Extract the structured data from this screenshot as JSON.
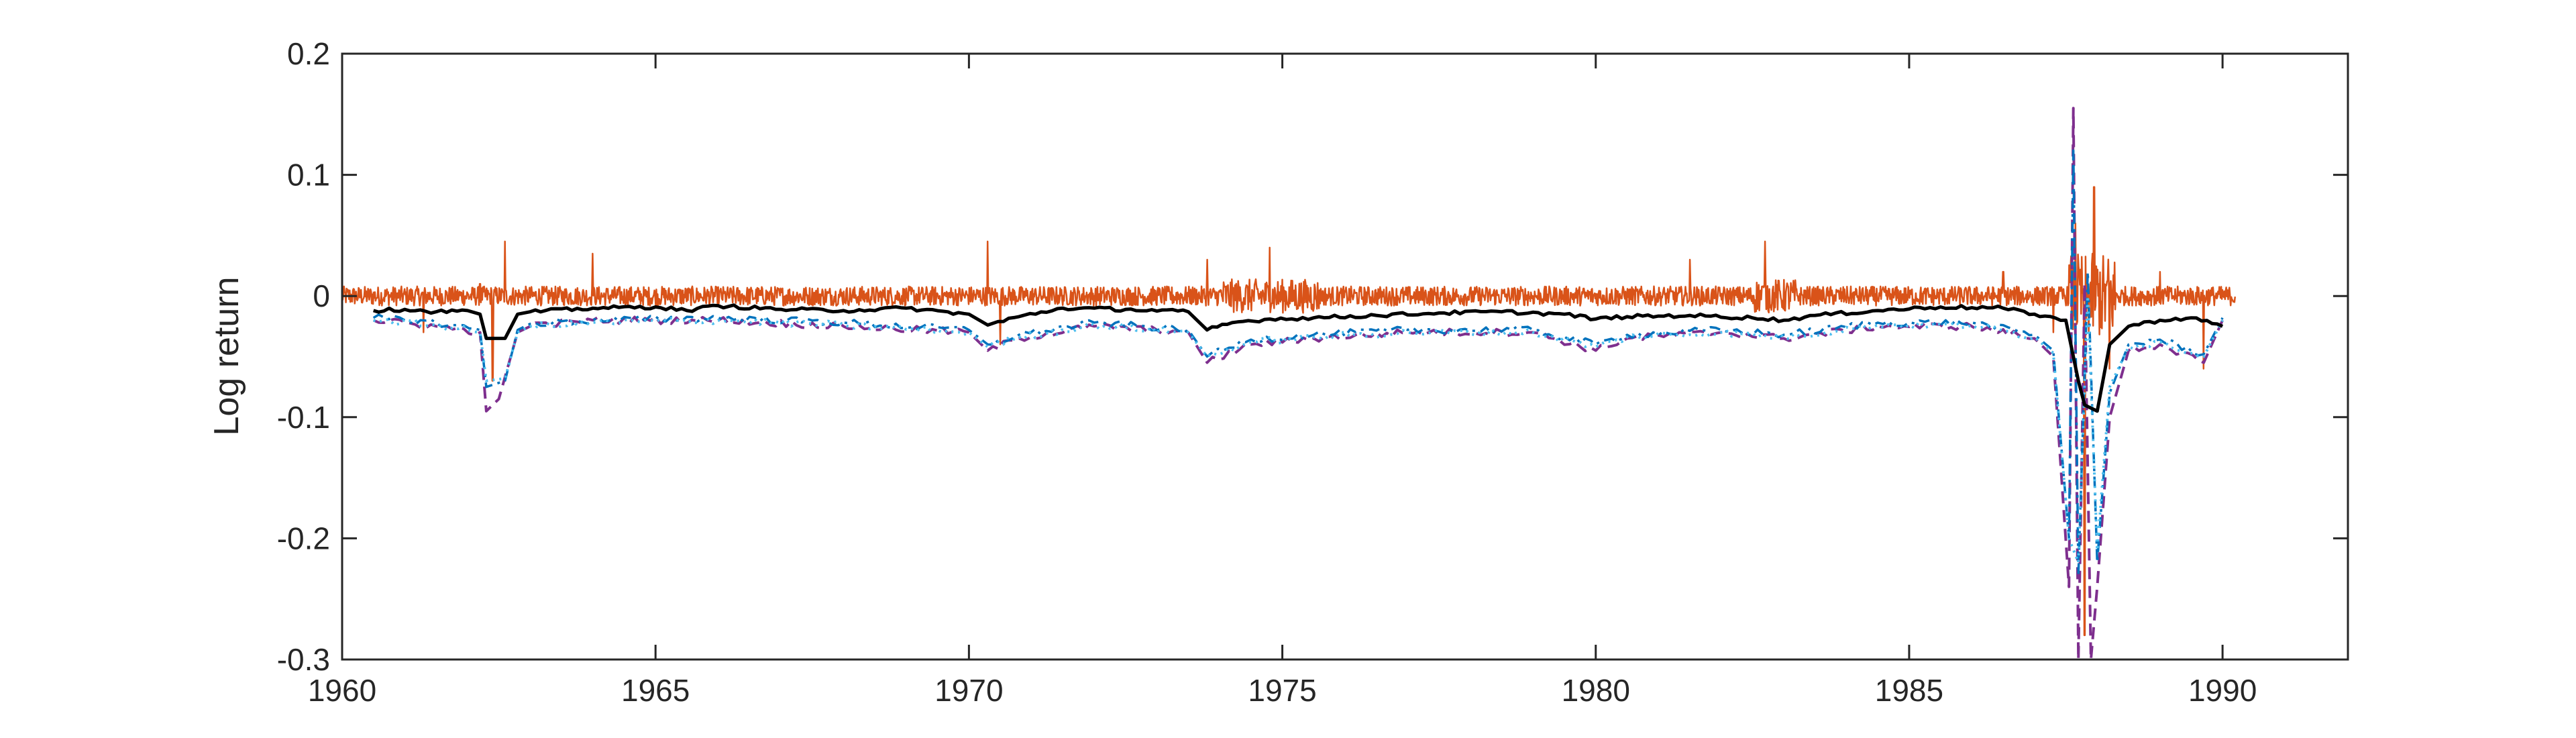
{
  "chart_data": {
    "type": "line",
    "title": "",
    "xlabel": "",
    "ylabel": "Log return",
    "xlim": [
      1960,
      1992
    ],
    "ylim": [
      -0.3,
      0.2
    ],
    "x_ticks": [
      1960,
      1965,
      1970,
      1975,
      1980,
      1985,
      1990
    ],
    "x_tick_labels": [
      "1960",
      "1965",
      "1970",
      "1975",
      "1980",
      "1985",
      "1990"
    ],
    "y_ticks": [
      0.2,
      0.1,
      0,
      -0.1,
      -0.2,
      -0.3
    ],
    "y_tick_labels": [
      "0.2",
      "0.1",
      "0",
      "-0.1",
      "-0.2",
      "-0.3"
    ],
    "grid": false,
    "legend": "none",
    "x_range_data": [
      1960.0,
      1990.2
    ],
    "series": [
      {
        "style": "solid-thin",
        "color": "#D95319",
        "description_of_shape": "daily returns fluctuating around zero",
        "x": [
          1960.0,
          1961.3,
          1962.2,
          1962.4,
          1962.6,
          1963.0,
          1964.0,
          1966.0,
          1968.0,
          1970.3,
          1970.5,
          1972.0,
          1973.8,
          1974.8,
          1975.5,
          1977.0,
          1979.0,
          1980.0,
          1981.5,
          1982.7,
          1983.5,
          1985.0,
          1986.5,
          1987.3,
          1987.65,
          1987.8,
          1987.95,
          1988.2,
          1989.0,
          1989.7,
          1990.2
        ],
        "y": [
          0.0,
          -0.03,
          0.01,
          -0.07,
          0.045,
          0.0,
          0.035,
          0.0,
          0.0,
          0.045,
          -0.04,
          0.0,
          0.03,
          0.04,
          0.0,
          0.0,
          0.0,
          0.0,
          0.03,
          0.045,
          0.0,
          0.0,
          0.02,
          -0.03,
          0.06,
          -0.28,
          0.09,
          -0.06,
          0.02,
          -0.06,
          0.0
        ]
      },
      {
        "style": "solid-thick",
        "color": "#000000",
        "x": [
          1960.5,
          1961.0,
          1961.5,
          1962.0,
          1962.2,
          1962.3,
          1962.6,
          1962.8,
          1963.0,
          1964.0,
          1965.0,
          1965.5,
          1966.0,
          1967.0,
          1968.0,
          1969.0,
          1970.0,
          1970.3,
          1970.8,
          1971.5,
          1972.5,
          1973.5,
          1973.8,
          1974.2,
          1974.8,
          1975.5,
          1976.5,
          1977.5,
          1978.5,
          1979.5,
          1980.0,
          1980.5,
          1981.5,
          1982.5,
          1983.0,
          1983.5,
          1984.5,
          1985.5,
          1986.5,
          1987.0,
          1987.5,
          1987.7,
          1987.8,
          1988.0,
          1988.2,
          1988.5,
          1989.0,
          1989.5,
          1990.0
        ],
        "y": [
          -0.012,
          -0.011,
          -0.013,
          -0.012,
          -0.015,
          -0.035,
          -0.035,
          -0.015,
          -0.013,
          -0.01,
          -0.009,
          -0.012,
          -0.008,
          -0.011,
          -0.012,
          -0.01,
          -0.015,
          -0.024,
          -0.017,
          -0.01,
          -0.011,
          -0.013,
          -0.028,
          -0.022,
          -0.019,
          -0.018,
          -0.016,
          -0.014,
          -0.013,
          -0.015,
          -0.019,
          -0.017,
          -0.016,
          -0.018,
          -0.02,
          -0.016,
          -0.012,
          -0.009,
          -0.01,
          -0.015,
          -0.02,
          -0.07,
          -0.09,
          -0.095,
          -0.04,
          -0.025,
          -0.02,
          -0.018,
          -0.025
        ]
      },
      {
        "style": "dashed",
        "color": "#7E2F8E",
        "x": [
          1960.5,
          1961.5,
          1962.2,
          1962.3,
          1962.5,
          1962.8,
          1963.0,
          1964.0,
          1966.0,
          1968.0,
          1970.0,
          1970.3,
          1970.8,
          1972.0,
          1973.5,
          1973.8,
          1974.5,
          1975.5,
          1977.0,
          1979.0,
          1980.0,
          1980.5,
          1982.0,
          1983.0,
          1984.5,
          1986.0,
          1987.0,
          1987.3,
          1987.55,
          1987.62,
          1987.7,
          1987.8,
          1987.9,
          1988.0,
          1988.2,
          1988.5,
          1989.0,
          1989.7,
          1990.0
        ],
        "y": [
          -0.02,
          -0.025,
          -0.03,
          -0.095,
          -0.085,
          -0.03,
          -0.025,
          -0.02,
          -0.02,
          -0.025,
          -0.03,
          -0.045,
          -0.035,
          -0.025,
          -0.03,
          -0.055,
          -0.04,
          -0.035,
          -0.03,
          -0.03,
          -0.045,
          -0.035,
          -0.03,
          -0.035,
          -0.025,
          -0.025,
          -0.035,
          -0.05,
          -0.24,
          0.155,
          -0.3,
          0.01,
          -0.3,
          -0.24,
          -0.1,
          -0.045,
          -0.04,
          -0.055,
          -0.02
        ]
      },
      {
        "style": "dash-dot",
        "color": "#0072BD",
        "x": [
          1960.5,
          1961.5,
          1962.2,
          1962.3,
          1962.6,
          1962.8,
          1963.0,
          1964.0,
          1966.0,
          1968.0,
          1970.0,
          1970.3,
          1970.8,
          1972.0,
          1973.5,
          1973.8,
          1974.5,
          1975.5,
          1977.0,
          1979.0,
          1980.0,
          1980.5,
          1982.0,
          1983.0,
          1984.5,
          1986.0,
          1987.0,
          1987.3,
          1987.55,
          1987.62,
          1987.7,
          1987.85,
          1988.0,
          1988.2,
          1988.5,
          1989.0,
          1989.7,
          1990.0
        ],
        "y": [
          -0.018,
          -0.022,
          -0.028,
          -0.075,
          -0.07,
          -0.028,
          -0.023,
          -0.02,
          -0.018,
          -0.022,
          -0.028,
          -0.04,
          -0.032,
          -0.022,
          -0.028,
          -0.05,
          -0.036,
          -0.032,
          -0.028,
          -0.028,
          -0.04,
          -0.032,
          -0.028,
          -0.032,
          -0.022,
          -0.022,
          -0.032,
          -0.045,
          -0.2,
          0.12,
          -0.23,
          0.02,
          -0.22,
          -0.08,
          -0.04,
          -0.036,
          -0.048,
          -0.018
        ]
      },
      {
        "style": "dotted",
        "color": "#4DBEEE",
        "x": [
          1960.5,
          1961.5,
          1962.2,
          1962.3,
          1962.6,
          1962.8,
          1963.0,
          1964.0,
          1966.0,
          1968.0,
          1970.0,
          1970.3,
          1970.8,
          1972.0,
          1973.5,
          1973.8,
          1974.5,
          1975.5,
          1977.0,
          1979.0,
          1980.0,
          1980.5,
          1982.0,
          1983.0,
          1984.5,
          1986.0,
          1987.0,
          1987.3,
          1987.55,
          1987.7,
          1987.85,
          1988.0,
          1988.2,
          1988.5,
          1989.0,
          1989.7,
          1990.0
        ],
        "y": [
          -0.02,
          -0.024,
          -0.03,
          -0.07,
          -0.068,
          -0.03,
          -0.025,
          -0.022,
          -0.02,
          -0.024,
          -0.03,
          -0.042,
          -0.034,
          -0.024,
          -0.03,
          -0.05,
          -0.038,
          -0.034,
          -0.03,
          -0.03,
          -0.042,
          -0.034,
          -0.03,
          -0.034,
          -0.024,
          -0.024,
          -0.034,
          -0.047,
          -0.2,
          -0.22,
          0.0,
          -0.21,
          -0.075,
          -0.042,
          -0.038,
          -0.05,
          -0.02
        ]
      }
    ]
  }
}
